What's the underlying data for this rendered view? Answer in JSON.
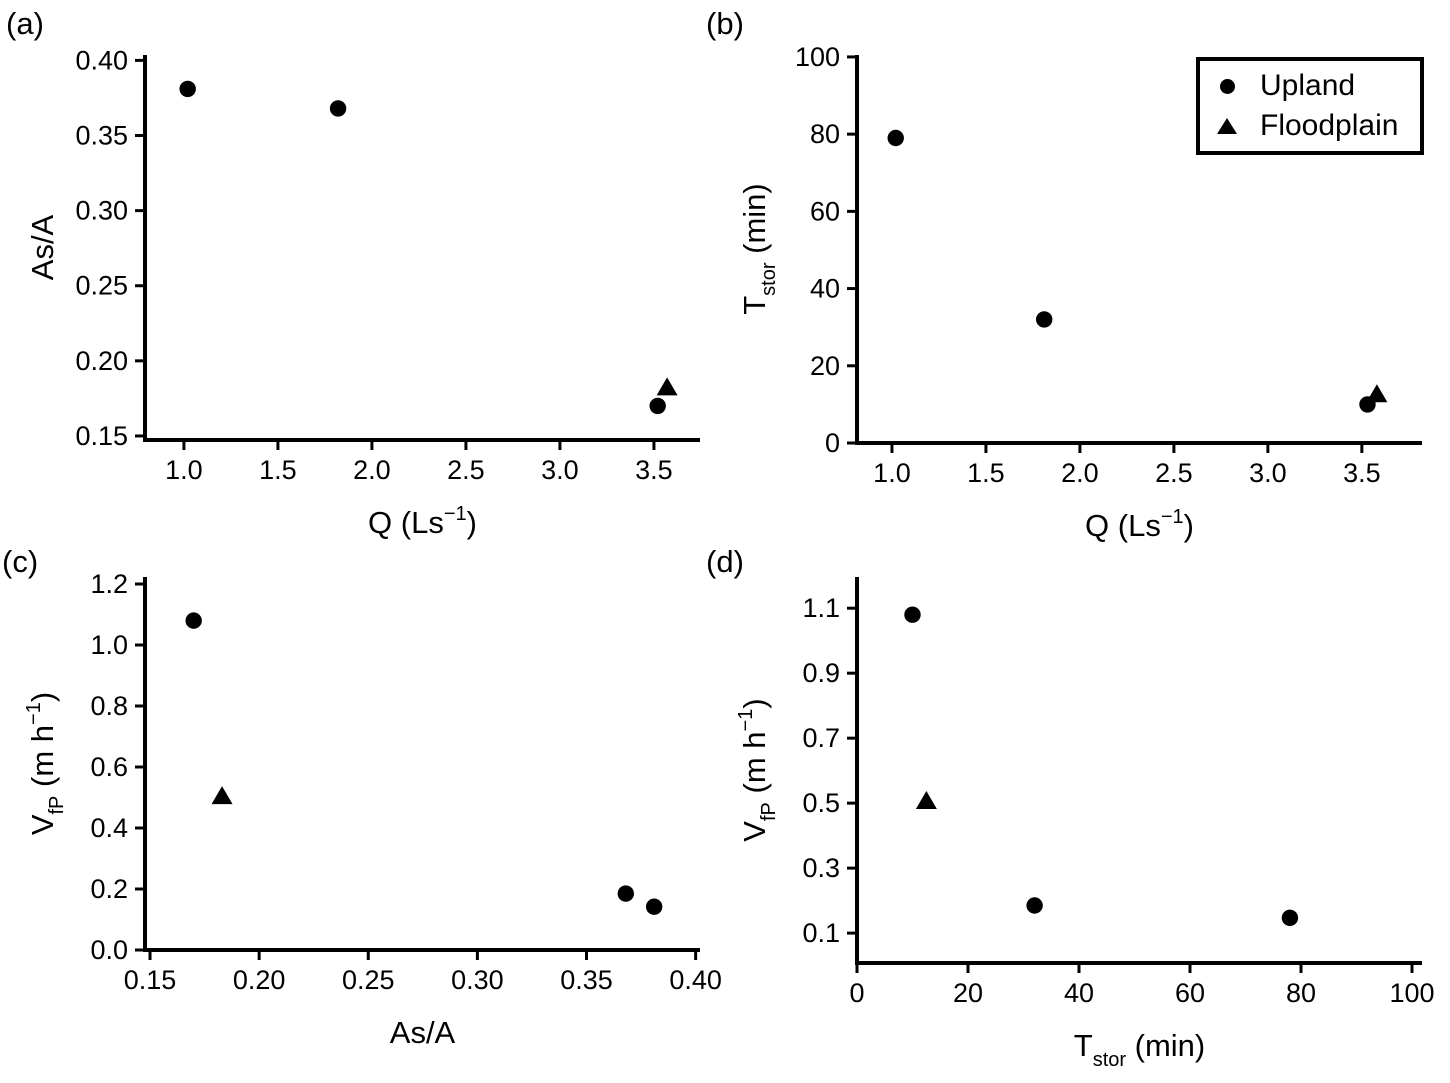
{
  "figure": {
    "background": "#ffffff",
    "ink_color": "#000000"
  },
  "legend": {
    "items": [
      {
        "label": "Upland",
        "marker": "circle"
      },
      {
        "label": "Floodplain",
        "marker": "triangle"
      }
    ]
  },
  "chart_data": {
    "type": "scatter",
    "grid": false,
    "legend_position": "top-right of panel b",
    "panels": [
      {
        "id": "a",
        "label": "(a)",
        "xlabel_parts": [
          {
            "t": "Q (Ls"
          },
          {
            "t": "−1",
            "s": "sup"
          },
          {
            "t": ")"
          }
        ],
        "ylabel_parts": [
          {
            "t": "As/A"
          }
        ],
        "xlim": [
          0.793,
          3.745
        ],
        "ylim": [
          0.1473,
          0.4036
        ],
        "xticks": [
          {
            "v": 1.0,
            "l": "1.0"
          },
          {
            "v": 1.5,
            "l": "1.5"
          },
          {
            "v": 2.0,
            "l": "2.0"
          },
          {
            "v": 2.5,
            "l": "2.5"
          },
          {
            "v": 3.0,
            "l": "3.0"
          },
          {
            "v": 3.5,
            "l": "3.5"
          }
        ],
        "yticks": [
          {
            "v": 0.15,
            "l": "0.15"
          },
          {
            "v": 0.2,
            "l": "0.20"
          },
          {
            "v": 0.25,
            "l": "0.25"
          },
          {
            "v": 0.3,
            "l": "0.30"
          },
          {
            "v": 0.35,
            "l": "0.35"
          },
          {
            "v": 0.4,
            "l": "0.40"
          }
        ],
        "series": [
          {
            "name": "Upland",
            "marker": "circle",
            "points": [
              [
                1.02,
                0.381
              ],
              [
                1.82,
                0.368
              ],
              [
                3.52,
                0.17
              ]
            ]
          },
          {
            "name": "Floodplain",
            "marker": "triangle",
            "points": [
              [
                3.57,
                0.182
              ]
            ]
          }
        ]
      },
      {
        "id": "b",
        "label": "(b)",
        "xlabel_parts": [
          {
            "t": "Q (Ls"
          },
          {
            "t": "−1",
            "s": "sup"
          },
          {
            "t": ")"
          }
        ],
        "ylabel_parts": [
          {
            "t": "T"
          },
          {
            "t": "stor",
            "s": "sub"
          },
          {
            "t": " (min)"
          }
        ],
        "xlim": [
          0.814,
          3.82
        ],
        "ylim": [
          0,
          100.5
        ],
        "xticks": [
          {
            "v": 1.0,
            "l": "1.0"
          },
          {
            "v": 1.5,
            "l": "1.5"
          },
          {
            "v": 2.0,
            "l": "2.0"
          },
          {
            "v": 2.5,
            "l": "2.5"
          },
          {
            "v": 3.0,
            "l": "3.0"
          },
          {
            "v": 3.5,
            "l": "3.5"
          }
        ],
        "yticks": [
          {
            "v": 0,
            "l": "0"
          },
          {
            "v": 20,
            "l": "20"
          },
          {
            "v": 40,
            "l": "40"
          },
          {
            "v": 60,
            "l": "60"
          },
          {
            "v": 80,
            "l": "80"
          },
          {
            "v": 100,
            "l": "100"
          }
        ],
        "series": [
          {
            "name": "Upland",
            "marker": "circle",
            "points": [
              [
                1.02,
                79
              ],
              [
                1.81,
                32
              ],
              [
                3.53,
                10
              ]
            ]
          },
          {
            "name": "Floodplain",
            "marker": "triangle",
            "points": [
              [
                3.58,
                12.5
              ]
            ]
          }
        ]
      },
      {
        "id": "c",
        "label": "(c)",
        "xlabel_parts": [
          {
            "t": "As/A"
          }
        ],
        "ylabel_parts": [
          {
            "t": "V"
          },
          {
            "t": "fP",
            "s": "sub"
          },
          {
            "t": " (m h"
          },
          {
            "t": "−1",
            "s": "sup"
          },
          {
            "t": ")"
          }
        ],
        "xlim": [
          0.1477,
          0.402
        ],
        "ylim": [
          0,
          1.223
        ],
        "xticks": [
          {
            "v": 0.15,
            "l": "0.15"
          },
          {
            "v": 0.2,
            "l": "0.20"
          },
          {
            "v": 0.25,
            "l": "0.25"
          },
          {
            "v": 0.3,
            "l": "0.30"
          },
          {
            "v": 0.35,
            "l": "0.35"
          },
          {
            "v": 0.4,
            "l": "0.40"
          }
        ],
        "yticks": [
          {
            "v": 0.0,
            "l": "0.0"
          },
          {
            "v": 0.2,
            "l": "0.2"
          },
          {
            "v": 0.4,
            "l": "0.4"
          },
          {
            "v": 0.6,
            "l": "0.6"
          },
          {
            "v": 0.8,
            "l": "0.8"
          },
          {
            "v": 1.0,
            "l": "1.0"
          },
          {
            "v": 1.2,
            "l": "1.2"
          }
        ],
        "series": [
          {
            "name": "Upland",
            "marker": "circle",
            "points": [
              [
                0.17,
                1.08
              ],
              [
                0.368,
                0.185
              ],
              [
                0.381,
                0.142
              ]
            ]
          },
          {
            "name": "Floodplain",
            "marker": "triangle",
            "points": [
              [
                0.183,
                0.503
              ]
            ]
          }
        ]
      },
      {
        "id": "d",
        "label": "(d)",
        "xlabel_parts": [
          {
            "t": "T"
          },
          {
            "t": "stor",
            "s": "sub"
          },
          {
            "t": " (min)"
          }
        ],
        "ylabel_parts": [
          {
            "t": "V"
          },
          {
            "t": "fP",
            "s": "sub"
          },
          {
            "t": " (m h"
          },
          {
            "t": "−1",
            "s": "sup"
          },
          {
            "t": ")"
          }
        ],
        "xlim": [
          0,
          101.8
        ],
        "ylim": [
          0.008,
          1.196
        ],
        "xticks": [
          {
            "v": 0,
            "l": "0"
          },
          {
            "v": 20,
            "l": "20"
          },
          {
            "v": 40,
            "l": "40"
          },
          {
            "v": 60,
            "l": "60"
          },
          {
            "v": 80,
            "l": "80"
          },
          {
            "v": 100,
            "l": "100"
          }
        ],
        "yticks": [
          {
            "v": 0.1,
            "l": "0.1"
          },
          {
            "v": 0.3,
            "l": "0.3"
          },
          {
            "v": 0.5,
            "l": "0.5"
          },
          {
            "v": 0.7,
            "l": "0.7"
          },
          {
            "v": 0.9,
            "l": "0.9"
          },
          {
            "v": 1.1,
            "l": "1.1"
          }
        ],
        "series": [
          {
            "name": "Upland",
            "marker": "circle",
            "points": [
              [
                10,
                1.08
              ],
              [
                32,
                0.185
              ],
              [
                78,
                0.147
              ]
            ]
          },
          {
            "name": "Floodplain",
            "marker": "triangle",
            "points": [
              [
                12.5,
                0.505
              ]
            ]
          }
        ]
      }
    ]
  }
}
